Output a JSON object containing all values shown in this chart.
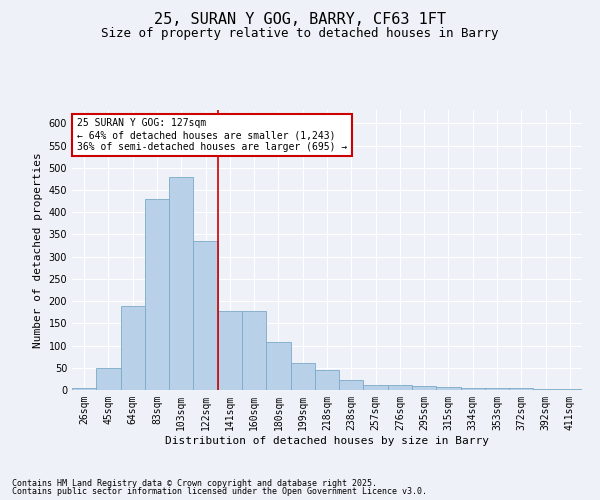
{
  "title1": "25, SURAN Y GOG, BARRY, CF63 1FT",
  "title2": "Size of property relative to detached houses in Barry",
  "xlabel": "Distribution of detached houses by size in Barry",
  "ylabel": "Number of detached properties",
  "categories": [
    "26sqm",
    "45sqm",
    "64sqm",
    "83sqm",
    "103sqm",
    "122sqm",
    "141sqm",
    "160sqm",
    "180sqm",
    "199sqm",
    "218sqm",
    "238sqm",
    "257sqm",
    "276sqm",
    "295sqm",
    "315sqm",
    "334sqm",
    "353sqm",
    "372sqm",
    "392sqm",
    "411sqm"
  ],
  "values": [
    5,
    50,
    190,
    430,
    480,
    335,
    178,
    178,
    108,
    60,
    44,
    23,
    11,
    11,
    8,
    7,
    5,
    4,
    5,
    3,
    3
  ],
  "bar_color": "#b8d0e8",
  "bar_edge_color": "#7aaac8",
  "annotation_text": "25 SURAN Y GOG: 127sqm\n← 64% of detached houses are smaller (1,243)\n36% of semi-detached houses are larger (695) →",
  "annotation_box_color": "#ffffff",
  "annotation_box_edge_color": "#cc0000",
  "vline_color": "#cc0000",
  "ylim": [
    0,
    630
  ],
  "yticks": [
    0,
    50,
    100,
    150,
    200,
    250,
    300,
    350,
    400,
    450,
    500,
    550,
    600
  ],
  "footnote1": "Contains HM Land Registry data © Crown copyright and database right 2025.",
  "footnote2": "Contains public sector information licensed under the Open Government Licence v3.0.",
  "bg_color": "#eef2f8",
  "grid_color": "#ffffff",
  "title1_fontsize": 11,
  "title2_fontsize": 9,
  "axis_label_fontsize": 8,
  "tick_fontsize": 7,
  "annotation_fontsize": 7,
  "footnote_fontsize": 6
}
